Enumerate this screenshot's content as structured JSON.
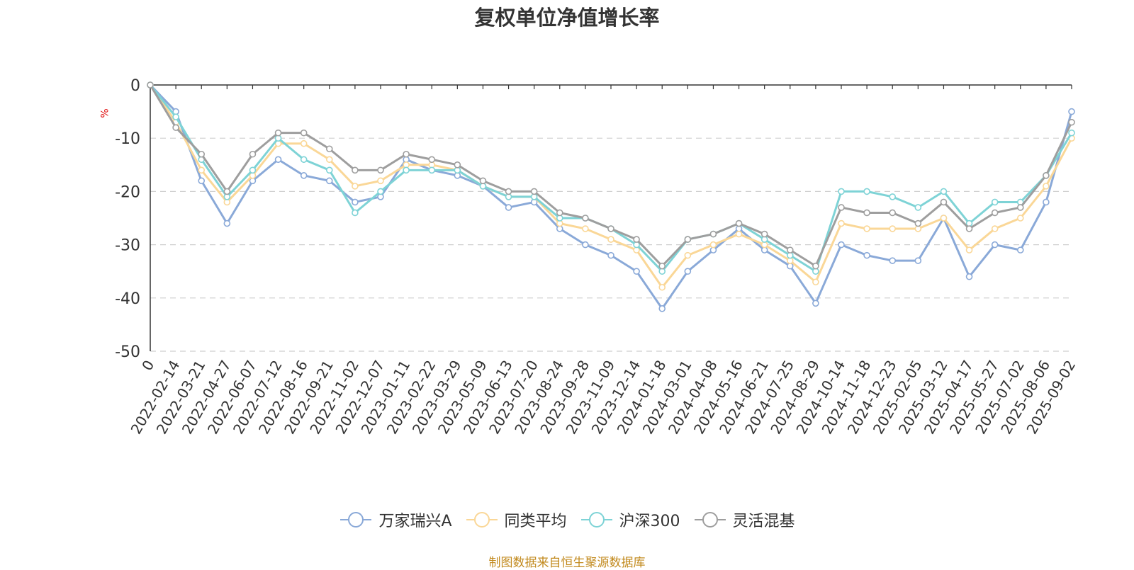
{
  "chart_data": {
    "type": "line",
    "title": "复权单位净值增长率",
    "ylabel": "%",
    "ylim": [
      -50,
      0
    ],
    "yticks": [
      0,
      -10,
      -20,
      -30,
      -40,
      -50
    ],
    "grid": true,
    "legend_position": "bottom",
    "x_ticks": [
      "0",
      "2022-02-14",
      "2022-03-21",
      "2022-04-27",
      "2022-06-07",
      "2022-07-12",
      "2022-08-16",
      "2022-09-21",
      "2022-11-02",
      "2022-12-07",
      "2023-01-11",
      "2023-02-22",
      "2023-03-29",
      "2023-05-09",
      "2023-06-13",
      "2023-07-20",
      "2023-08-24",
      "2023-09-28",
      "2023-11-09",
      "2023-12-14",
      "2024-01-18",
      "2024-03-01",
      "2024-04-08",
      "2024-05-16",
      "2024-06-21",
      "2024-07-25",
      "2024-08-29",
      "2024-10-14",
      "2024-11-18",
      "2024-12-23",
      "2025-02-05",
      "2025-03-12",
      "2025-04-17",
      "2025-05-27",
      "2025-07-02",
      "2025-08-06",
      "2025-09-02"
    ],
    "x": [
      "0",
      "2022-02-14",
      "2022-03-21",
      "2022-04-27",
      "2022-06-07",
      "2022-07-12",
      "2022-08-16",
      "2022-09-21",
      "2022-11-02",
      "2022-12-07",
      "2023-01-11",
      "2023-02-22",
      "2023-03-29",
      "2023-05-09",
      "2023-06-13",
      "2023-07-20",
      "2023-08-24",
      "2023-09-28",
      "2023-11-09",
      "2023-12-14",
      "2024-01-18",
      "2024-03-01",
      "2024-04-08",
      "2024-05-16",
      "2024-06-21",
      "2024-07-25",
      "2024-08-29",
      "2024-10-14",
      "2024-11-18",
      "2024-12-23",
      "2025-02-05",
      "2025-03-12",
      "2025-04-17",
      "2025-05-27",
      "2025-07-02",
      "2025-08-06",
      "2025-09-02"
    ],
    "series": [
      {
        "name": "万家瑞兴A",
        "color": "#8aa9d8",
        "values": [
          0,
          -5,
          -18,
          -26,
          -18,
          -14,
          -17,
          -18,
          -22,
          -21,
          -14,
          -16,
          -17,
          -19,
          -23,
          -22,
          -27,
          -30,
          -32,
          -35,
          -42,
          -35,
          -31,
          -27,
          -31,
          -34,
          -41,
          -30,
          -32,
          -33,
          -33,
          -25,
          -36,
          -30,
          -31,
          -22,
          -5
        ]
      },
      {
        "name": "同类平均",
        "color": "#fad797",
        "values": [
          0,
          -7,
          -16,
          -22,
          -17,
          -11,
          -11,
          -14,
          -19,
          -18,
          -15,
          -15,
          -16,
          -19,
          -21,
          -21,
          -26,
          -27,
          -29,
          -31,
          -38,
          -32,
          -30,
          -28,
          -30,
          -33,
          -37,
          -26,
          -27,
          -27,
          -27,
          -25,
          -31,
          -27,
          -25,
          -19,
          -10
        ]
      },
      {
        "name": "沪深300",
        "color": "#7ed3d6",
        "values": [
          0,
          -6,
          -14,
          -21,
          -16,
          -10,
          -14,
          -16,
          -24,
          -20,
          -16,
          -16,
          -16,
          -19,
          -21,
          -21,
          -25,
          -25,
          -27,
          -30,
          -35,
          -29,
          -28,
          -26,
          -29,
          -32,
          -35,
          -20,
          -20,
          -21,
          -23,
          -20,
          -26,
          -22,
          -22,
          -17,
          -9
        ]
      },
      {
        "name": "灵活混基",
        "color": "#9e9e9e",
        "values": [
          0,
          -8,
          -13,
          -20,
          -13,
          -9,
          -9,
          -12,
          -16,
          -16,
          -13,
          -14,
          -15,
          -18,
          -20,
          -20,
          -24,
          -25,
          -27,
          -29,
          -34,
          -29,
          -28,
          -26,
          -28,
          -31,
          -34,
          -23,
          -24,
          -24,
          -26,
          -22,
          -27,
          -24,
          -23,
          -17,
          -7
        ]
      }
    ]
  },
  "footer": {
    "source": "制图数据来自恒生聚源数据库"
  }
}
